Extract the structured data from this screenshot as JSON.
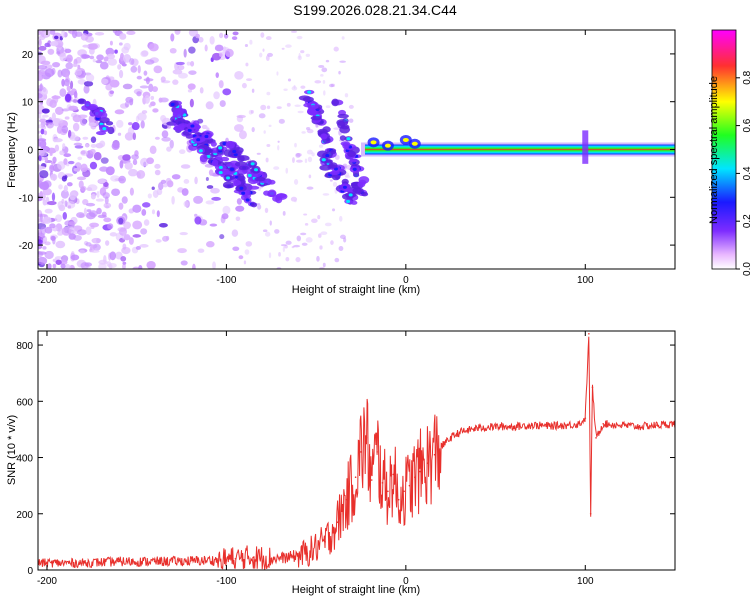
{
  "title": "S199.2026.028.21.34.C44",
  "colors": {
    "line": "#e8302c",
    "axis": "#000000",
    "blob": "#8a2be2",
    "band_core": "#e8302c"
  },
  "chart_data": [
    {
      "type": "heatmap",
      "title": "S199.2026.028.21.34.C44",
      "xlabel": "Height of straight line (km)",
      "ylabel": "Frequency (Hz)",
      "xlim": [
        -205,
        150
      ],
      "ylim": [
        -25,
        25
      ],
      "x_ticks": [
        -200,
        -100,
        0,
        100
      ],
      "y_ticks": [
        -20,
        -10,
        0,
        10,
        20
      ],
      "colorbar": {
        "label": "Normalized spectral amplitude",
        "range": [
          0.0,
          1.0
        ],
        "ticks": [
          "0.0",
          "0.2",
          "0.4",
          "0.6",
          "0.8"
        ]
      },
      "features": [
        {
          "name": "constant band",
          "x_range": [
            -20,
            150
          ],
          "frequency": 0,
          "amplitude": 1.0
        },
        {
          "name": "diagonal streak",
          "x_range": [
            -130,
            -85
          ],
          "frequency_range": [
            8,
            -8
          ]
        },
        {
          "name": "secondary streak",
          "x_range": [
            -55,
            -30
          ],
          "frequency_range": [
            12,
            -10
          ]
        },
        {
          "name": "spike near 100 km",
          "x": 100,
          "frequency_range": [
            -3,
            4
          ]
        }
      ]
    },
    {
      "type": "line",
      "xlabel": "Height of straight line (km)",
      "ylabel": "SNR (10 * v/v)",
      "xlim": [
        -205,
        150
      ],
      "ylim": [
        0,
        850
      ],
      "x_ticks": [
        -200,
        -100,
        0,
        100
      ],
      "y_ticks": [
        0,
        200,
        400,
        600,
        800
      ],
      "series": [
        {
          "name": "SNR",
          "x": [
            -205,
            -180,
            -160,
            -140,
            -120,
            -105,
            -95,
            -85,
            -75,
            -65,
            -55,
            -45,
            -38,
            -33,
            -28,
            -25,
            -22,
            -19,
            -16,
            -13,
            -10,
            -7,
            -4,
            -1,
            2,
            5,
            8,
            12,
            16,
            20,
            25,
            30,
            40,
            50,
            60,
            70,
            80,
            90,
            97,
            100,
            102,
            103,
            104,
            106,
            110,
            120,
            130,
            140,
            150
          ],
          "y": [
            25,
            25,
            30,
            30,
            32,
            35,
            40,
            45,
            40,
            45,
            60,
            100,
            170,
            250,
            330,
            420,
            470,
            320,
            420,
            310,
            280,
            340,
            250,
            280,
            300,
            330,
            350,
            380,
            410,
            440,
            470,
            490,
            505,
            510,
            510,
            515,
            512,
            515,
            520,
            540,
            840,
            200,
            650,
            470,
            520,
            515,
            510,
            515,
            520
          ]
        }
      ]
    }
  ]
}
